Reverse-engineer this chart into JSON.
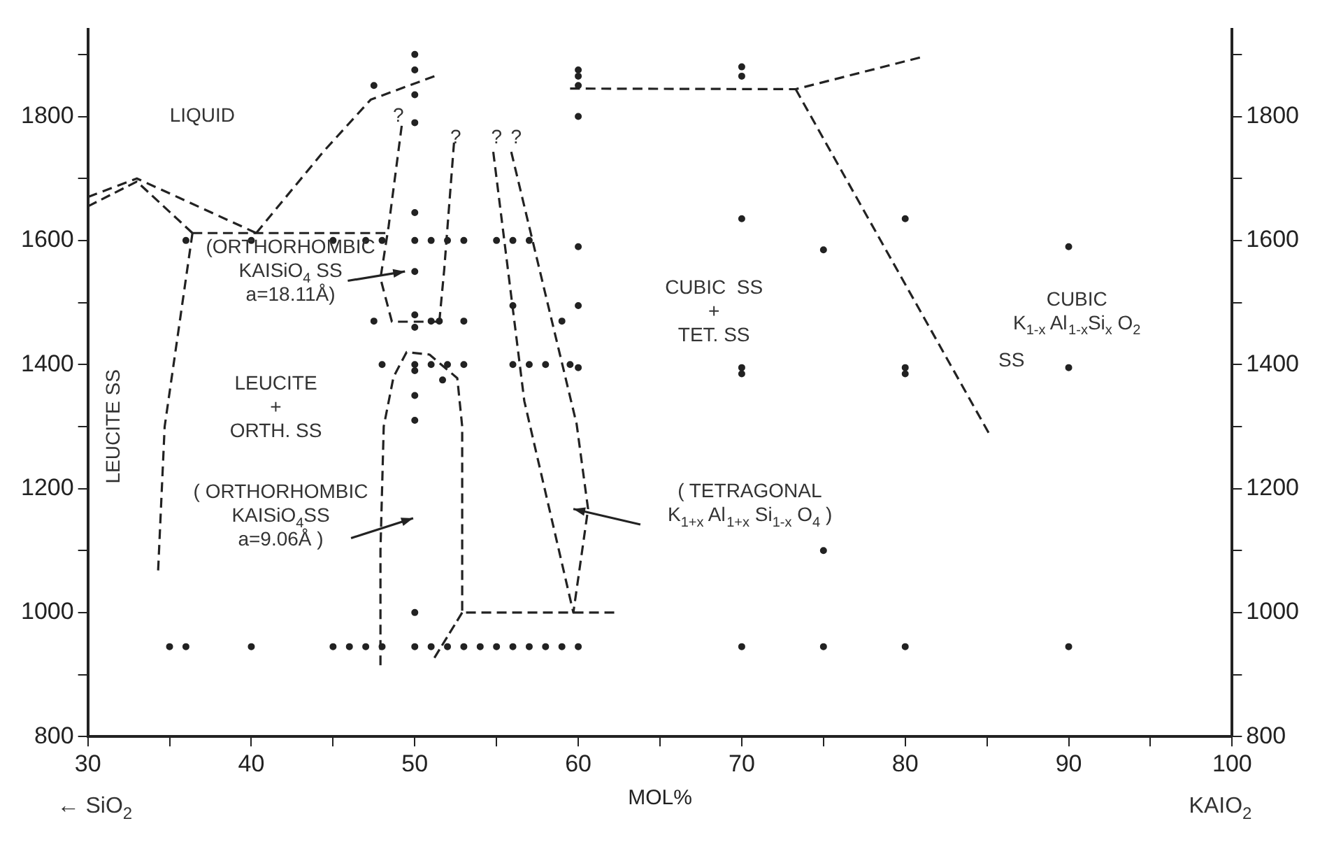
{
  "chart_data": {
    "type": "scatter",
    "xlabel": "MOL%",
    "xlim": [
      30,
      100
    ],
    "ylim": [
      800,
      1940
    ],
    "y2lim": [
      800,
      1940
    ],
    "xticks": [
      30,
      {
        "value": 35,
        "label": null
      },
      40,
      {
        "value": 45,
        "label": null
      },
      50,
      {
        "value": 55,
        "label": null
      },
      60,
      {
        "value": 65,
        "label": null
      },
      70,
      {
        "value": 75,
        "label": null
      },
      80,
      {
        "value": 85,
        "label": null
      },
      90,
      {
        "value": 95,
        "label": null
      },
      100
    ],
    "yticks": [
      800,
      {
        "value": 900,
        "label": null
      },
      1000,
      {
        "value": 1100,
        "label": null
      },
      1200,
      {
        "value": 1300,
        "label": null
      },
      1400,
      {
        "value": 1500,
        "label": null
      },
      1600,
      {
        "value": 1700,
        "label": null
      },
      1800,
      {
        "value": 1900,
        "label": null
      }
    ],
    "y2ticks": [
      800,
      {
        "value": 900,
        "label": null
      },
      1000,
      {
        "value": 1100,
        "label": null
      },
      1200,
      {
        "value": 1300,
        "label": null
      },
      1400,
      {
        "value": 1500,
        "label": null
      },
      1600,
      {
        "value": 1700,
        "label": null
      },
      1800,
      {
        "value": 1900,
        "label": null
      }
    ],
    "grid": false,
    "series": [
      {
        "marker": "circle",
        "color": "#222222",
        "x": [
          35,
          36,
          40,
          45,
          46,
          47,
          48,
          50,
          51,
          52,
          53,
          54,
          55,
          56,
          57,
          58,
          59,
          60,
          70,
          75,
          80,
          90,
          50,
          75,
          50,
          50,
          50,
          50,
          50,
          50,
          50,
          50,
          50,
          50,
          50,
          50,
          50,
          47.5,
          60,
          60,
          60,
          60,
          60,
          60,
          60,
          70,
          70,
          70,
          70,
          70,
          80,
          80,
          80,
          75,
          90,
          90,
          36,
          40,
          45,
          47,
          48,
          51,
          52,
          53,
          55,
          56,
          57,
          47.5,
          51,
          51.5,
          53,
          59,
          56,
          48,
          51,
          52,
          53,
          56,
          57,
          58,
          59.5,
          51.7
        ],
        "values": [
          945,
          945,
          945,
          945,
          945,
          945,
          945,
          945,
          945,
          945,
          945,
          945,
          945,
          945,
          945,
          945,
          945,
          945,
          945,
          945,
          945,
          945,
          1000,
          1100,
          1310,
          1350,
          1390,
          1400,
          1460,
          1480,
          1550,
          1600,
          1645,
          1790,
          1835,
          1875,
          1900,
          1850,
          1800,
          1850,
          1865,
          1875,
          1590,
          1495,
          1395,
          1865,
          1880,
          1635,
          1395,
          1385,
          1635,
          1395,
          1385,
          1585,
          1590,
          1395,
          1600,
          1600,
          1600,
          1600,
          1600,
          1600,
          1600,
          1600,
          1600,
          1600,
          1600,
          1470,
          1470,
          1470,
          1470,
          1470,
          1495,
          1400,
          1400,
          1400,
          1400,
          1400,
          1400,
          1400,
          1400,
          1375
        ]
      },
      {
        "type": "line",
        "line_style": "dashed",
        "marker": "none",
        "color": "#222222",
        "x": [
          30,
          33,
          40.3
        ],
        "values": [
          1670,
          1700,
          1612
        ]
      },
      {
        "type": "line",
        "line_style": "dashed",
        "marker": "none",
        "color": "#222222",
        "x": [
          30,
          33,
          36.4
        ],
        "values": [
          1655,
          1695,
          1612
        ]
      },
      {
        "type": "line",
        "line_style": "dashed",
        "marker": "none",
        "color": "#222222",
        "x": [
          36.4,
          48.2
        ],
        "values": [
          1612,
          1612
        ]
      },
      {
        "type": "line",
        "line_style": "dashed",
        "marker": "none",
        "color": "#222222",
        "x": [
          40.3,
          44.4,
          47.3,
          51.2
        ],
        "values": [
          1612,
          1743,
          1827,
          1865
        ]
      },
      {
        "type": "line",
        "line_style": "dashed",
        "marker": "none",
        "color": "#222222",
        "x": [
          36.4,
          34.7,
          34.3
        ],
        "values": [
          1612,
          1300,
          1068
        ]
      },
      {
        "type": "line",
        "line_style": "dashed",
        "marker": "none",
        "color": "#222222",
        "x": [
          49.2,
          48.4,
          47.9,
          48.6,
          51.5
        ],
        "values": [
          1785,
          1623,
          1539,
          1469,
          1469
        ]
      },
      {
        "type": "line",
        "line_style": "dashed",
        "marker": "none",
        "color": "#222222",
        "x": [
          52.4,
          51.8,
          51.5
        ],
        "values": [
          1758,
          1553,
          1469
        ]
      },
      {
        "type": "line",
        "line_style": "dashed",
        "marker": "none",
        "color": "#222222",
        "x": [
          47.9,
          47.9,
          48.1,
          48.7,
          49.5,
          50.9,
          52.6,
          52.9,
          52.9,
          62.2
        ],
        "values": [
          915,
          1100,
          1300,
          1380,
          1420,
          1416,
          1378,
          1300,
          1000,
          1000
        ]
      },
      {
        "type": "line",
        "line_style": "dashed",
        "marker": "none",
        "color": "#222222",
        "x": [
          52.9,
          51.2
        ],
        "values": [
          1000,
          927
        ]
      },
      {
        "type": "line",
        "line_style": "dashed",
        "marker": "none",
        "color": "#222222",
        "x": [
          54.8,
          56.7,
          59.7,
          60.6,
          59.9,
          55.9
        ],
        "values": [
          1743,
          1341,
          1000,
          1167,
          1304,
          1743
        ]
      },
      {
        "type": "line",
        "line_style": "dashed",
        "marker": "none",
        "color": "#222222",
        "x": [
          59.5,
          73.3,
          80.9
        ],
        "values": [
          1845,
          1844,
          1895
        ]
      },
      {
        "type": "line",
        "line_style": "dashed",
        "marker": "none",
        "color": "#222222",
        "x": [
          73.3,
          85.1
        ],
        "values": [
          1844,
          1290
        ]
      }
    ],
    "annotations": [
      "LIQUID",
      "LEUCITE SS",
      "?",
      "?",
      "?",
      "?",
      "(ORTHORHOMBIC\nKAISiO$_{4}$ SS\na=18.11Å)",
      "LEUCITE\n+\nORTH. SS",
      "( ORTHORHOMBIC\nKAISiO$_{4}$SS\na=9.06Å )",
      "CUBIC  SS\n+\nTET. SS",
      "( TETRAGONAL\nK$_{1+x}$ Al$_{1+x}$ Si$_{1-x}$ O$_{4}$ )",
      "CUBIC\nK$_{1-x}$ Al$_{1-x}$Si$_{x}$ O$_{2}$",
      "SS",
      "← SiO$_{2}$",
      "KAIO$_{2}$"
    ]
  }
}
